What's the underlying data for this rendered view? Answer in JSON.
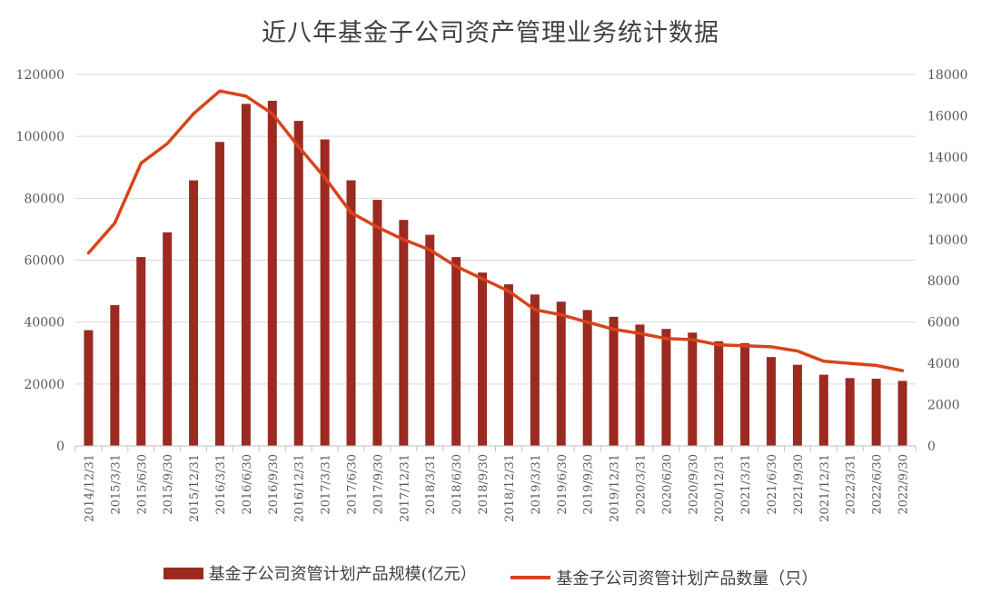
{
  "chart_data": {
    "type": "bar",
    "title": "近八年基金子公司资产管理业务统计数据",
    "categories": [
      "2014/12/31",
      "2015/3/31",
      "2015/6/30",
      "2015/9/30",
      "2015/12/31",
      "2016/3/31",
      "2016/6/30",
      "2016/9/30",
      "2016/12/31",
      "2017/3/31",
      "2017/6/30",
      "2017/9/30",
      "2017/12/31",
      "2018/3/31",
      "2018/6/30",
      "2018/9/30",
      "2018/12/31",
      "2019/3/31",
      "2019/6/30",
      "2019/9/30",
      "2019/12/31",
      "2020/3/31",
      "2020/6/30",
      "2020/9/30",
      "2020/12/31",
      "2021/3/31",
      "2021/6/30",
      "2021/9/30",
      "2021/12/31",
      "2022/3/31",
      "2022/6/30",
      "2022/9/30"
    ],
    "series": [
      {
        "name": "基金子公司资管计划产品规模(亿元）",
        "type": "bar",
        "axis": "left",
        "color": "#9b2a21",
        "values": [
          37400,
          45500,
          61000,
          69000,
          85800,
          98200,
          110500,
          111500,
          105000,
          99000,
          85800,
          79500,
          73000,
          68200,
          61000,
          56000,
          52200,
          48900,
          46600,
          43900,
          41700,
          39200,
          37800,
          36600,
          33800,
          33200,
          28700,
          26200,
          23000,
          21900,
          21700,
          21000
        ]
      },
      {
        "name": "基金子公司资管计划产品数量（只）",
        "type": "line",
        "axis": "right",
        "color": "#d9431b",
        "values": [
          9350,
          10800,
          13700,
          14650,
          16100,
          17200,
          16950,
          16100,
          14500,
          13000,
          11300,
          10600,
          10000,
          9500,
          8700,
          8100,
          7500,
          6600,
          6350,
          6000,
          5650,
          5450,
          5200,
          5150,
          4900,
          4850,
          4800,
          4600,
          4100,
          4000,
          3900,
          3650
        ]
      }
    ],
    "y_left": {
      "min": 0,
      "max": 120000,
      "ticks": [
        "0",
        "20000",
        "40000",
        "60000",
        "80000",
        "100000",
        "120000"
      ]
    },
    "y_right": {
      "min": 0,
      "max": 18000,
      "ticks": [
        "0",
        "2000",
        "4000",
        "6000",
        "8000",
        "10000",
        "12000",
        "14000",
        "16000",
        "18000"
      ]
    },
    "grid": "horizontal",
    "legend_position": "bottom"
  }
}
